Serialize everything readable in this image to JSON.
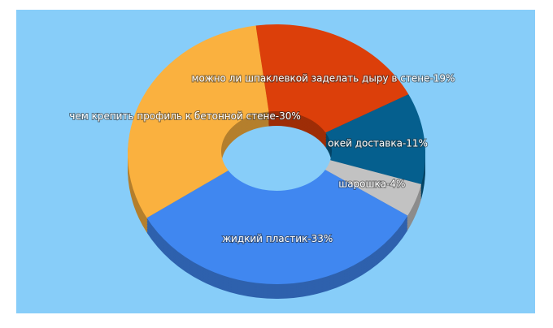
{
  "chart_data": {
    "type": "donut3d",
    "values": [
      19,
      11,
      4,
      33,
      30
    ],
    "value_labels": [
      "можно ли шпаклевкой заделать дыру в стене-19%",
      "окей доставка-11%",
      "шарошка-4%",
      "жидкий пластик-33%",
      "чем крепить профиль к бетонной стене-30%"
    ],
    "colors": [
      "#dc3f0a",
      "#055f8e",
      "#c2c2c2",
      "#4087f0",
      "#fab13f"
    ]
  }
}
